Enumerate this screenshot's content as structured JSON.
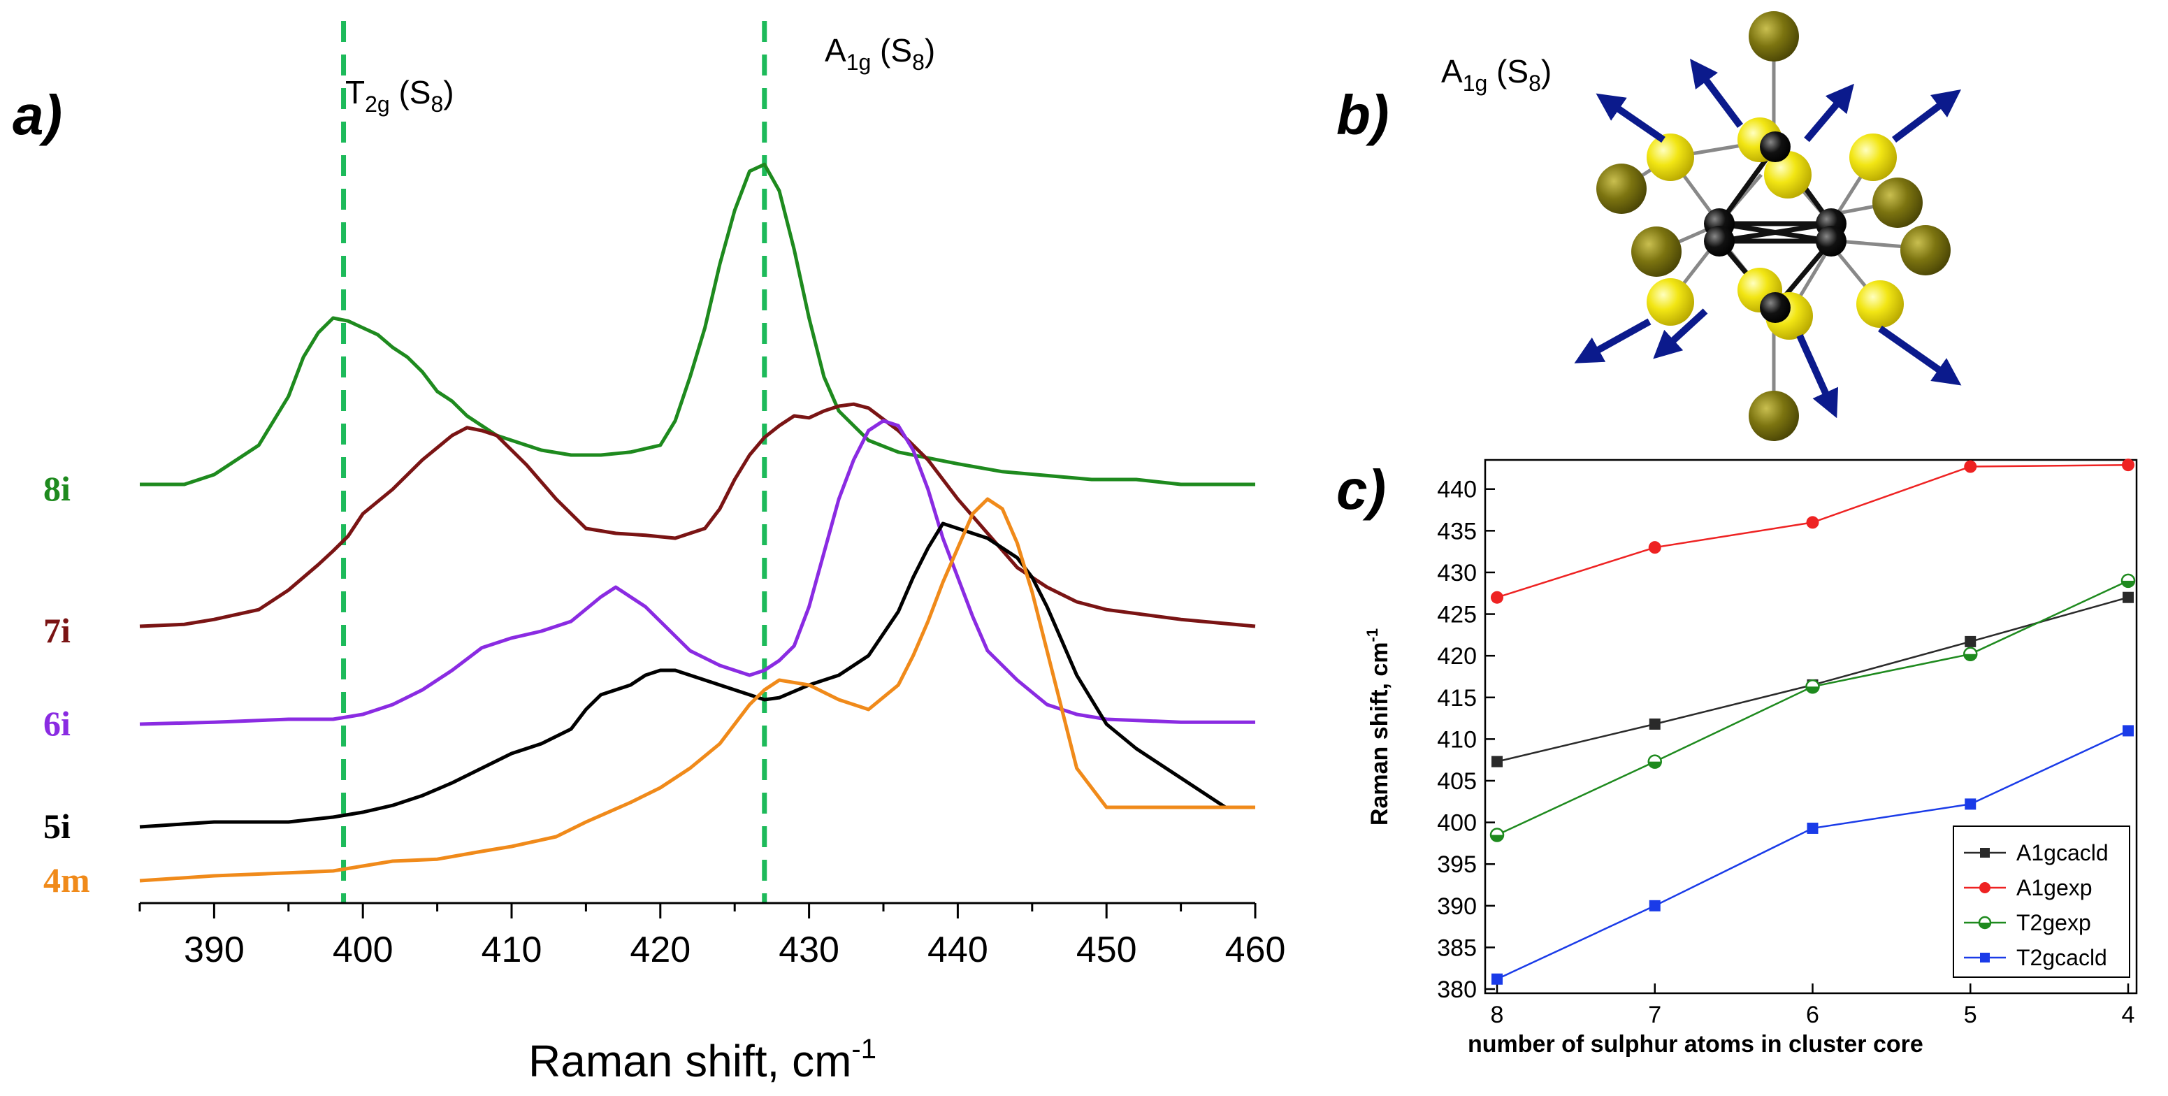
{
  "panels": {
    "a": "a)",
    "b": "b)",
    "c": "c)"
  },
  "annotations": {
    "t2g_main": "T",
    "t2g_sub": "2g",
    "t2g_rest": " (S",
    "t2g_s8": "8",
    "t2g_close": ")",
    "a1g_main": "A",
    "a1g_sub": "1g",
    "a1g_rest": " (S",
    "a1g_s8": "8",
    "a1g_close": ")",
    "b_a1g_main": "A",
    "b_a1g_sub": "1g",
    "b_a1g_rest": " (S",
    "b_a1g_s8": "8",
    "b_a1g_close": ")"
  },
  "colors": {
    "8i": "#1e8a1e",
    "7i": "#7a1414",
    "6i": "#8a2be2",
    "5i": "#000000",
    "4m": "#f08a1a",
    "dashed": "#1dba5a",
    "A1gcacld": "#2a2a2a",
    "A1gexp": "#ee2222",
    "T2gexp": "#1e8a1e",
    "T2gcacld": "#1a3be8",
    "arrow": "#0b1a8c",
    "sulfur_yellow": "#f2e614",
    "sulfur_olive": "#7c7410",
    "metal": "#111111"
  },
  "chart_data": [
    {
      "id": "a",
      "type": "line",
      "title": "",
      "xlabel_main": "Raman shift, cm",
      "xlabel_sup": "-1",
      "ylabel": "",
      "xlim": [
        385,
        460
      ],
      "xticks": [
        390,
        400,
        410,
        420,
        430,
        440,
        450,
        460
      ],
      "dashed_lines_x": [
        398.7,
        427
      ],
      "series": [
        {
          "name": "8i",
          "offset": 4,
          "x": [
            385,
            388,
            390,
            393,
            395,
            396,
            397,
            398,
            399,
            400,
            401,
            402,
            403,
            404,
            405,
            406,
            407,
            408,
            409,
            410,
            412,
            414,
            416,
            418,
            420,
            421,
            422,
            423,
            424,
            425,
            426,
            427,
            428,
            429,
            430,
            431,
            432,
            434,
            436,
            438,
            440,
            443,
            446,
            449,
            452,
            455,
            458,
            460
          ],
          "y": [
            0.05,
            0.05,
            0.15,
            0.45,
            0.95,
            1.35,
            1.6,
            1.75,
            1.72,
            1.65,
            1.58,
            1.45,
            1.35,
            1.2,
            1.0,
            0.9,
            0.75,
            0.65,
            0.55,
            0.5,
            0.4,
            0.35,
            0.35,
            0.38,
            0.45,
            0.7,
            1.15,
            1.65,
            2.3,
            2.85,
            3.25,
            3.32,
            3.05,
            2.45,
            1.75,
            1.15,
            0.8,
            0.5,
            0.38,
            0.32,
            0.26,
            0.18,
            0.14,
            0.1,
            0.1,
            0.05,
            0.05,
            0.05
          ]
        },
        {
          "name": "7i",
          "offset": 2.55,
          "x": [
            385,
            388,
            390,
            393,
            395,
            397,
            398,
            399,
            400,
            402,
            404,
            406,
            407,
            408,
            409,
            410,
            411,
            413,
            415,
            417,
            419,
            421,
            423,
            424,
            425,
            426,
            427,
            428,
            429,
            430,
            431,
            432,
            433,
            434,
            436,
            438,
            440,
            442,
            444,
            446,
            448,
            450,
            455,
            460
          ],
          "y": [
            0.05,
            0.07,
            0.12,
            0.22,
            0.42,
            0.68,
            0.82,
            0.97,
            1.2,
            1.45,
            1.75,
            2.0,
            2.08,
            2.05,
            2.0,
            1.85,
            1.7,
            1.35,
            1.05,
            1.0,
            0.98,
            0.95,
            1.05,
            1.25,
            1.55,
            1.8,
            1.98,
            2.1,
            2.2,
            2.18,
            2.25,
            2.3,
            2.32,
            2.28,
            2.05,
            1.75,
            1.35,
            1.0,
            0.65,
            0.45,
            0.3,
            0.22,
            0.12,
            0.05
          ]
        },
        {
          "name": "6i",
          "offset": 1.6,
          "x": [
            385,
            390,
            395,
            398,
            400,
            402,
            404,
            406,
            408,
            410,
            412,
            414,
            416,
            417,
            418,
            419,
            420,
            421,
            422,
            424,
            426,
            427,
            428,
            429,
            430,
            431,
            432,
            433,
            434,
            435,
            436,
            437,
            438,
            439,
            440,
            441,
            442,
            444,
            446,
            448,
            450,
            455,
            460
          ],
          "y": [
            0.0,
            0.02,
            0.05,
            0.05,
            0.1,
            0.2,
            0.35,
            0.55,
            0.78,
            0.88,
            0.95,
            1.05,
            1.3,
            1.4,
            1.3,
            1.2,
            1.05,
            0.9,
            0.75,
            0.6,
            0.5,
            0.55,
            0.65,
            0.8,
            1.2,
            1.75,
            2.3,
            2.7,
            3.0,
            3.1,
            3.05,
            2.8,
            2.4,
            1.9,
            1.5,
            1.1,
            0.75,
            0.45,
            0.2,
            0.1,
            0.05,
            0.02,
            0.02
          ]
        },
        {
          "name": "5i",
          "offset": 0.55,
          "x": [
            385,
            388,
            390,
            395,
            398,
            400,
            402,
            404,
            406,
            408,
            410,
            412,
            414,
            415,
            416,
            417,
            418,
            419,
            420,
            421,
            422,
            424,
            426,
            427,
            428,
            430,
            432,
            434,
            436,
            437,
            438,
            439,
            440,
            441,
            442,
            443,
            444,
            445,
            446,
            447,
            448,
            450,
            452,
            455,
            458,
            460
          ],
          "y": [
            0.0,
            0.03,
            0.05,
            0.05,
            0.1,
            0.15,
            0.22,
            0.32,
            0.45,
            0.6,
            0.75,
            0.85,
            1.0,
            1.2,
            1.35,
            1.4,
            1.45,
            1.55,
            1.6,
            1.6,
            1.55,
            1.45,
            1.35,
            1.3,
            1.32,
            1.45,
            1.55,
            1.75,
            2.2,
            2.55,
            2.85,
            3.1,
            3.05,
            3.0,
            2.95,
            2.85,
            2.75,
            2.55,
            2.25,
            1.9,
            1.55,
            1.05,
            0.8,
            0.5,
            0.2,
            0.2
          ]
        },
        {
          "name": "4m",
          "offset": 0.0,
          "x": [
            385,
            390,
            395,
            398,
            400,
            402,
            405,
            408,
            410,
            413,
            415,
            418,
            420,
            422,
            424,
            425,
            426,
            427,
            428,
            430,
            432,
            434,
            436,
            437,
            438,
            439,
            440,
            441,
            442,
            443,
            444,
            445,
            446,
            447,
            448,
            450,
            455,
            460
          ],
          "y": [
            0.0,
            0.05,
            0.08,
            0.1,
            0.15,
            0.2,
            0.22,
            0.3,
            0.35,
            0.45,
            0.6,
            0.8,
            0.95,
            1.15,
            1.4,
            1.6,
            1.8,
            1.95,
            2.05,
            2.0,
            1.85,
            1.75,
            2.0,
            2.3,
            2.65,
            3.05,
            3.4,
            3.75,
            3.9,
            3.8,
            3.45,
            2.95,
            2.35,
            1.75,
            1.15,
            0.75,
            0.75,
            0.75
          ]
        }
      ]
    },
    {
      "id": "c",
      "type": "line",
      "title": "",
      "xlabel": "number of sulphur atoms in cluster core",
      "ylabel_main": "Raman shift, cm",
      "ylabel_sup": "-1",
      "categories": [
        "8",
        "7",
        "6",
        "5",
        "4"
      ],
      "ylim": [
        380,
        443
      ],
      "yticks": [
        380,
        385,
        390,
        395,
        400,
        405,
        410,
        415,
        420,
        425,
        430,
        435,
        440
      ],
      "series": [
        {
          "name": "A1gcacld",
          "marker": "square-filled",
          "values": [
            407.3,
            411.8,
            416.5,
            421.7,
            427.0
          ]
        },
        {
          "name": "A1gexp",
          "marker": "circle-filled",
          "values": [
            427.0,
            433.0,
            436.0,
            442.7,
            442.9
          ]
        },
        {
          "name": "T2gexp",
          "marker": "circle-half",
          "values": [
            398.5,
            407.3,
            416.3,
            420.2,
            429.0
          ]
        },
        {
          "name": "T2gcacld",
          "marker": "square-filled",
          "values": [
            381.2,
            390.0,
            399.3,
            402.2,
            411.0
          ]
        }
      ],
      "legend_position": "bottom-right"
    }
  ]
}
